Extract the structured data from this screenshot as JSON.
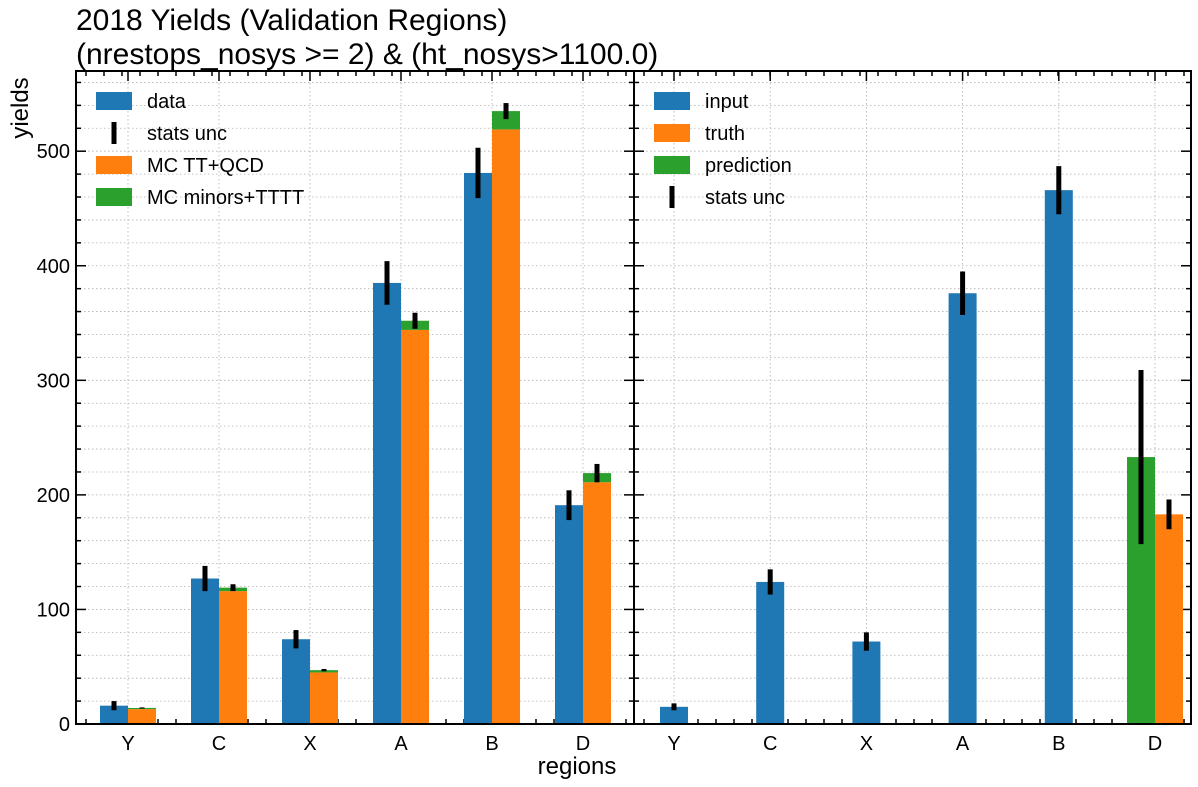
{
  "chart_data": [
    {
      "type": "bar",
      "title_lines": [
        "2018 Yields (Validation Regions)",
        "(nrestops_nosys >= 2) & (ht_nosys>1100.0)"
      ],
      "xlabel": "regions",
      "ylabel": "yields",
      "ylim": [
        0,
        570
      ],
      "yticks": [
        0,
        100,
        200,
        300,
        400,
        500
      ],
      "grid": true,
      "legend_placement": "top-left",
      "categories": [
        "Y",
        "C",
        "X",
        "A",
        "B",
        "D"
      ],
      "legend": [
        "data",
        "stats unc",
        "MC TT+QCD",
        "MC minors+TTTT"
      ],
      "series": [
        {
          "name": "data",
          "color": "#1f77b4",
          "values": [
            16,
            127,
            74,
            385,
            481,
            191
          ],
          "err": [
            4,
            11,
            8,
            19,
            22,
            13
          ]
        },
        {
          "name": "MC TT+QCD",
          "color": "#ff7f0e",
          "values": [
            13,
            116,
            45,
            344,
            519,
            211
          ],
          "err": [
            0,
            0,
            0,
            0,
            0,
            0
          ]
        },
        {
          "name": "MC minors+TTTT",
          "color": "#2ca02c",
          "values": [
            1,
            3,
            2,
            8,
            16,
            8
          ],
          "err": [
            0.5,
            3,
            1,
            7,
            7,
            8
          ]
        }
      ]
    },
    {
      "type": "bar",
      "xlabel": "",
      "ylabel": "",
      "ylim": [
        0,
        570
      ],
      "grid": true,
      "legend_placement": "top-left",
      "categories": [
        "Y",
        "C",
        "X",
        "A",
        "B",
        "D"
      ],
      "legend": [
        "input",
        "truth",
        "prediction",
        "stats unc"
      ],
      "series": [
        {
          "name": "input",
          "color": "#1f77b4",
          "values": [
            15,
            124,
            72,
            376,
            466,
            null
          ],
          "err": [
            3,
            11,
            8,
            19,
            21,
            null
          ]
        },
        {
          "name": "prediction",
          "color": "#2ca02c",
          "values": [
            null,
            null,
            null,
            null,
            null,
            233
          ],
          "err": [
            null,
            null,
            null,
            null,
            null,
            76
          ]
        },
        {
          "name": "truth",
          "color": "#ff7f0e",
          "values": [
            null,
            null,
            null,
            null,
            null,
            183
          ],
          "err": [
            null,
            null,
            null,
            null,
            null,
            13
          ]
        }
      ]
    }
  ]
}
